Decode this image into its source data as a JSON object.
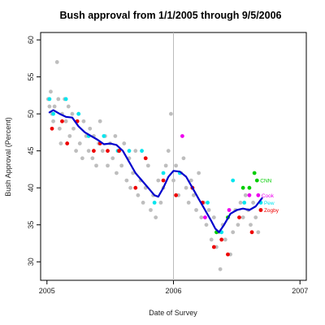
{
  "chart_data": {
    "type": "scatter",
    "title": "Bush approval from 1/1/2005 through 9/5/2006",
    "xlabel": "Date of Survey",
    "ylabel": "Bush Approval (Percent)",
    "xlim": [
      2004.95,
      2007.05
    ],
    "ylim": [
      27.5,
      61
    ],
    "x_ticks": [
      2005,
      2006,
      2007
    ],
    "x_tick_labels": [
      "2005",
      "2006",
      "2007"
    ],
    "y_ticks": [
      30,
      35,
      40,
      45,
      50,
      55,
      60
    ],
    "y_tick_labels": [
      "30",
      "35",
      "40",
      "45",
      "50",
      "55",
      "60"
    ],
    "grid": false,
    "reference_line_x": 2006,
    "colors": {
      "other_polls": "#bebebe",
      "trend": "#0000cd",
      "reference_line": "#bbbbbb",
      "axis": "#000000"
    },
    "series": [
      {
        "name": "",
        "color": "#bebebe",
        "points": [
          [
            2005.01,
            52
          ],
          [
            2005.02,
            51
          ],
          [
            2005.03,
            53
          ],
          [
            2005.04,
            50
          ],
          [
            2005.05,
            49
          ],
          [
            2005.06,
            51
          ],
          [
            2005.08,
            57
          ],
          [
            2005.09,
            52
          ],
          [
            2005.1,
            48
          ],
          [
            2005.11,
            46
          ],
          [
            2005.12,
            50
          ],
          [
            2005.14,
            52
          ],
          [
            2005.15,
            49
          ],
          [
            2005.17,
            51
          ],
          [
            2005.18,
            47
          ],
          [
            2005.2,
            50
          ],
          [
            2005.21,
            48
          ],
          [
            2005.23,
            45
          ],
          [
            2005.25,
            50
          ],
          [
            2005.26,
            46
          ],
          [
            2005.28,
            44
          ],
          [
            2005.29,
            49
          ],
          [
            2005.31,
            47
          ],
          [
            2005.33,
            45
          ],
          [
            2005.34,
            48
          ],
          [
            2005.36,
            44
          ],
          [
            2005.37,
            47
          ],
          [
            2005.39,
            43
          ],
          [
            2005.41,
            46
          ],
          [
            2005.42,
            49
          ],
          [
            2005.44,
            45
          ],
          [
            2005.46,
            47
          ],
          [
            2005.48,
            43
          ],
          [
            2005.5,
            46
          ],
          [
            2005.52,
            44
          ],
          [
            2005.54,
            47
          ],
          [
            2005.55,
            42
          ],
          [
            2005.57,
            45
          ],
          [
            2005.59,
            43
          ],
          [
            2005.61,
            46
          ],
          [
            2005.63,
            41
          ],
          [
            2005.65,
            44
          ],
          [
            2005.66,
            40
          ],
          [
            2005.68,
            42
          ],
          [
            2005.7,
            45
          ],
          [
            2005.72,
            39
          ],
          [
            2005.74,
            41
          ],
          [
            2005.76,
            38
          ],
          [
            2005.78,
            40
          ],
          [
            2005.8,
            43
          ],
          [
            2005.82,
            37
          ],
          [
            2005.84,
            39
          ],
          [
            2005.86,
            36
          ],
          [
            2005.88,
            41
          ],
          [
            2005.9,
            38
          ],
          [
            2005.92,
            40
          ],
          [
            2005.94,
            43
          ],
          [
            2005.96,
            45
          ],
          [
            2005.98,
            50
          ],
          [
            2006.0,
            41
          ],
          [
            2006.02,
            43
          ],
          [
            2006.04,
            39
          ],
          [
            2006.06,
            42
          ],
          [
            2006.08,
            44
          ],
          [
            2006.1,
            40
          ],
          [
            2006.12,
            38
          ],
          [
            2006.14,
            41
          ],
          [
            2006.16,
            39
          ],
          [
            2006.18,
            37
          ],
          [
            2006.2,
            42
          ],
          [
            2006.22,
            36
          ],
          [
            2006.24,
            38
          ],
          [
            2006.26,
            35
          ],
          [
            2006.28,
            37
          ],
          [
            2006.3,
            33
          ],
          [
            2006.32,
            36
          ],
          [
            2006.34,
            32
          ],
          [
            2006.36,
            34
          ],
          [
            2006.37,
            29
          ],
          [
            2006.39,
            35
          ],
          [
            2006.41,
            33
          ],
          [
            2006.43,
            36
          ],
          [
            2006.45,
            31
          ],
          [
            2006.47,
            34
          ],
          [
            2006.49,
            37
          ],
          [
            2006.51,
            35
          ],
          [
            2006.53,
            38
          ],
          [
            2006.55,
            36
          ],
          [
            2006.57,
            39
          ],
          [
            2006.59,
            37
          ],
          [
            2006.61,
            35
          ],
          [
            2006.63,
            38
          ],
          [
            2006.65,
            36
          ],
          [
            2006.67,
            34
          ],
          [
            2006.69,
            37
          ]
        ]
      },
      {
        "name": "Pew",
        "color": "#00e5ee",
        "points": [
          [
            2005.02,
            52
          ],
          [
            2005.05,
            50
          ],
          [
            2005.15,
            52
          ],
          [
            2005.25,
            50
          ],
          [
            2005.33,
            47
          ],
          [
            2005.45,
            47
          ],
          [
            2005.56,
            45
          ],
          [
            2005.65,
            45
          ],
          [
            2005.75,
            45
          ],
          [
            2005.85,
            38
          ],
          [
            2005.92,
            42
          ],
          [
            2006.05,
            42
          ],
          [
            2006.15,
            40
          ],
          [
            2006.27,
            38
          ],
          [
            2006.38,
            34
          ],
          [
            2006.47,
            41
          ],
          [
            2006.56,
            38
          ],
          [
            2006.69,
            38
          ]
        ],
        "label_at": [
          2006.69,
          38
        ]
      },
      {
        "name": "Cook",
        "color": "#ee00ee",
        "points": [
          [
            2006.07,
            47
          ],
          [
            2006.25,
            36
          ],
          [
            2006.44,
            37
          ],
          [
            2006.6,
            39
          ],
          [
            2006.67,
            39
          ]
        ],
        "label_at": [
          2006.67,
          39
        ]
      },
      {
        "name": "CNN",
        "color": "#00cd00",
        "points": [
          [
            2006.34,
            34
          ],
          [
            2006.43,
            36
          ],
          [
            2006.55,
            40
          ],
          [
            2006.6,
            40
          ],
          [
            2006.64,
            42
          ],
          [
            2006.66,
            41
          ]
        ],
        "label_at": [
          2006.66,
          41
        ]
      },
      {
        "name": "Zogby",
        "color": "#ee0000",
        "points": [
          [
            2005.04,
            48
          ],
          [
            2005.12,
            49
          ],
          [
            2005.16,
            46
          ],
          [
            2005.24,
            49
          ],
          [
            2005.37,
            45
          ],
          [
            2005.42,
            46
          ],
          [
            2005.48,
            45
          ],
          [
            2005.57,
            45
          ],
          [
            2005.7,
            40
          ],
          [
            2005.78,
            44
          ],
          [
            2005.92,
            41
          ],
          [
            2006.02,
            39
          ],
          [
            2006.15,
            40
          ],
          [
            2006.23,
            38
          ],
          [
            2006.32,
            32
          ],
          [
            2006.38,
            33
          ],
          [
            2006.43,
            31
          ],
          [
            2006.52,
            36
          ],
          [
            2006.62,
            34
          ],
          [
            2006.69,
            37
          ]
        ],
        "label_at": [
          2006.69,
          37
        ]
      }
    ],
    "trend_line": [
      [
        2005.02,
        50.2
      ],
      [
        2005.05,
        50.5
      ],
      [
        2005.1,
        50.0
      ],
      [
        2005.15,
        49.6
      ],
      [
        2005.2,
        49.5
      ],
      [
        2005.25,
        48.3
      ],
      [
        2005.3,
        47.5
      ],
      [
        2005.35,
        47.0
      ],
      [
        2005.4,
        46.5
      ],
      [
        2005.45,
        45.9
      ],
      [
        2005.5,
        46.0
      ],
      [
        2005.55,
        45.8
      ],
      [
        2005.6,
        45.0
      ],
      [
        2005.65,
        43.5
      ],
      [
        2005.7,
        42.0
      ],
      [
        2005.75,
        41.0
      ],
      [
        2005.8,
        40.0
      ],
      [
        2005.85,
        39.0
      ],
      [
        2005.88,
        38.8
      ],
      [
        2005.92,
        40.0
      ],
      [
        2005.96,
        41.5
      ],
      [
        2006.0,
        42.3
      ],
      [
        2006.05,
        42.2
      ],
      [
        2006.1,
        41.5
      ],
      [
        2006.15,
        40.0
      ],
      [
        2006.2,
        38.5
      ],
      [
        2006.25,
        37.0
      ],
      [
        2006.3,
        35.5
      ],
      [
        2006.33,
        34.5
      ],
      [
        2006.36,
        34.0
      ],
      [
        2006.4,
        35.0
      ],
      [
        2006.45,
        36.5
      ],
      [
        2006.5,
        37.0
      ],
      [
        2006.55,
        37.2
      ],
      [
        2006.6,
        37.0
      ],
      [
        2006.65,
        37.5
      ],
      [
        2006.7,
        38.6
      ]
    ]
  }
}
